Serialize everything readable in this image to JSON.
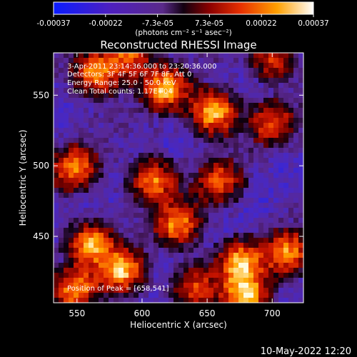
{
  "colorbar": {
    "ticks": [
      "-0.00037",
      "-0.00022",
      "-7.3e-05",
      "7.3e-05",
      "0.00022",
      "0.00037"
    ],
    "unit_label": "(photons cm⁻² s⁻¹ asec⁻²)",
    "range": [
      -0.00037,
      0.00037
    ]
  },
  "chart_data": {
    "type": "heatmap",
    "title": "Reconstructed RHESSI Image",
    "xlabel": "Heliocentric X (arcsec)",
    "ylabel": "Heliocentric Y (arcsec)",
    "xlim": [
      532,
      724
    ],
    "ylim": [
      403,
      580
    ],
    "xticks": [
      550,
      600,
      650,
      700
    ],
    "yticks": [
      450,
      500,
      550
    ],
    "annotations": [
      "3-Apr-2011 23:14:36.000 to 23:20:36.000",
      "Detectors: 3F 4F 5F 6F 7F 8F, Att 0",
      "Energy Range: 25.0 - 50.0 keV",
      "Clean      Total counts: 1.17E+04"
    ],
    "peak_label": "Position of Peak = [658,541]",
    "peak": [
      658,
      541
    ],
    "bright_regions": [
      {
        "x": 655,
        "y": 538,
        "v": 1.0
      },
      {
        "x": 618,
        "y": 555,
        "v": 0.8
      },
      {
        "x": 565,
        "y": 565,
        "v": 0.85
      },
      {
        "x": 590,
        "y": 578,
        "v": 0.7
      },
      {
        "x": 700,
        "y": 575,
        "v": 0.6
      },
      {
        "x": 700,
        "y": 530,
        "v": 0.55
      },
      {
        "x": 548,
        "y": 498,
        "v": 0.7
      },
      {
        "x": 608,
        "y": 490,
        "v": 0.8
      },
      {
        "x": 660,
        "y": 488,
        "v": 0.6
      },
      {
        "x": 628,
        "y": 458,
        "v": 0.75
      },
      {
        "x": 560,
        "y": 445,
        "v": 0.85
      },
      {
        "x": 585,
        "y": 425,
        "v": 0.9
      },
      {
        "x": 548,
        "y": 412,
        "v": 0.7
      },
      {
        "x": 675,
        "y": 432,
        "v": 0.8
      },
      {
        "x": 712,
        "y": 438,
        "v": 0.75
      },
      {
        "x": 680,
        "y": 408,
        "v": 0.9
      },
      {
        "x": 640,
        "y": 415,
        "v": 0.55
      }
    ]
  },
  "footer": {
    "date": "10-May-2022 12:20"
  }
}
